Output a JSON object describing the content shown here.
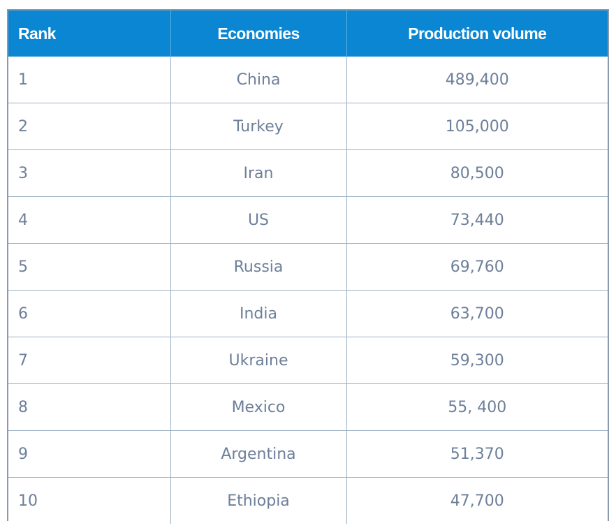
{
  "table": {
    "headers": {
      "rank": "Rank",
      "economies": "Economies",
      "production": "Production volume"
    },
    "rows": [
      {
        "rank": "1",
        "economy": "China",
        "production": "489,400"
      },
      {
        "rank": "2",
        "economy": "Turkey",
        "production": "105,000"
      },
      {
        "rank": "3",
        "economy": "Iran",
        "production": "80,500"
      },
      {
        "rank": "4",
        "economy": "US",
        "production": "73,440"
      },
      {
        "rank": "5",
        "economy": "Russia",
        "production": "69,760"
      },
      {
        "rank": "6",
        "economy": "India",
        "production": "63,700"
      },
      {
        "rank": "7",
        "economy": "Ukraine",
        "production": "59,300"
      },
      {
        "rank": "8",
        "economy": "Mexico",
        "production": "55, 400"
      },
      {
        "rank": "9",
        "economy": "Argentina",
        "production": "51,370"
      },
      {
        "rank": "10",
        "economy": "Ethiopia",
        "production": "47,700"
      }
    ],
    "colors": {
      "header_background": "#0a86d2",
      "header_text": "#ffffff",
      "cell_text": "#6d7f99",
      "grid_lines": "#9eb0c2"
    }
  }
}
